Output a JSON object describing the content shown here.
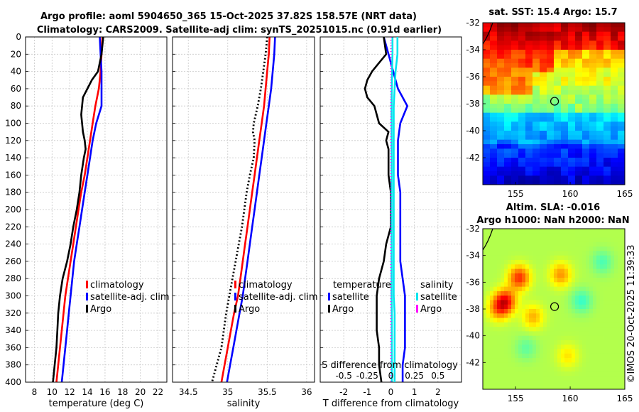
{
  "titles": {
    "line1": "Argo profile: aoml 5904650_365 15-Oct-2025 37.82S 158.57E (NRT data)",
    "line2": "Climatology: CARS2009. Satellite-adj clim: synTS_20251015.nc (0.91d earlier)"
  },
  "timestamp": "©IMOS 20-Oct-2025 11:39:33",
  "colors": {
    "clim": "#ff0000",
    "sat": "#0000ff",
    "argo": "#000000",
    "sat_s": "#00e5ee",
    "argo_s": "#ff00ff"
  },
  "chart_data": [
    {
      "type": "line",
      "name": "temperature",
      "xlabel": "temperature (deg C)",
      "xlim": [
        7,
        23
      ],
      "ylim": [
        400,
        0
      ],
      "xticks": [
        "8",
        "10",
        "12",
        "14",
        "16",
        "18",
        "20",
        "22"
      ],
      "xtick_values": [
        8,
        10,
        12,
        14,
        16,
        18,
        20,
        22
      ],
      "yticks": [
        "0",
        "20",
        "40",
        "60",
        "80",
        "100",
        "120",
        "140",
        "160",
        "180",
        "200",
        "220",
        "240",
        "260",
        "280",
        "300",
        "320",
        "340",
        "360",
        "380",
        "400"
      ],
      "grid": true,
      "legend": {
        "position": "lower-right",
        "labels": [
          "climatology",
          "satellite-adj. clim",
          "Argo"
        ]
      },
      "series": [
        {
          "name": "climatology",
          "depth": [
            0,
            20,
            40,
            60,
            80,
            100,
            120,
            140,
            160,
            180,
            200,
            220,
            240,
            260,
            280,
            300,
            320,
            340,
            360,
            380,
            400
          ],
          "values": [
            15.7,
            15.6,
            15.5,
            15.3,
            14.9,
            14.6,
            14.3,
            14.0,
            13.7,
            13.3,
            13.0,
            12.7,
            12.4,
            12.1,
            11.8,
            11.5,
            11.3,
            11.1,
            10.9,
            10.7,
            10.5
          ]
        },
        {
          "name": "satellite-adj. clim",
          "depth": [
            0,
            20,
            40,
            60,
            80,
            100,
            120,
            140,
            160,
            180,
            200,
            220,
            240,
            260,
            280,
            300,
            320,
            340,
            360,
            380,
            400
          ],
          "values": [
            15.4,
            15.5,
            15.6,
            15.6,
            15.6,
            15.0,
            14.6,
            14.3,
            14.0,
            13.7,
            13.4,
            13.1,
            12.8,
            12.5,
            12.3,
            12.1,
            11.9,
            11.7,
            11.5,
            11.3,
            11.1
          ]
        },
        {
          "name": "Argo",
          "depth": [
            0,
            10,
            20,
            30,
            40,
            50,
            60,
            70,
            80,
            90,
            100,
            110,
            120,
            130,
            140,
            160,
            180,
            200,
            220,
            240,
            260,
            280,
            300,
            320,
            340,
            360,
            380,
            400
          ],
          "values": [
            15.8,
            15.7,
            15.6,
            15.4,
            15.2,
            14.5,
            14.0,
            13.5,
            13.4,
            13.3,
            13.4,
            13.5,
            13.7,
            13.8,
            13.6,
            13.3,
            13.1,
            12.8,
            12.4,
            12.1,
            11.7,
            11.2,
            10.9,
            10.7,
            10.6,
            10.5,
            10.3,
            10.1
          ]
        }
      ]
    },
    {
      "type": "line",
      "name": "salinity",
      "xlabel": "salinity",
      "xlim": [
        34.3,
        36.1
      ],
      "ylim": [
        400,
        0
      ],
      "xticks": [
        "34.5",
        "35",
        "35.5",
        "36"
      ],
      "xtick_values": [
        34.5,
        35.0,
        35.5,
        36.0
      ],
      "grid": true,
      "legend": {
        "position": "lower-right",
        "labels": [
          "climatology",
          "satellite-adj. clim",
          "Argo"
        ]
      },
      "series": [
        {
          "name": "climatology",
          "depth": [
            0,
            20,
            40,
            60,
            80,
            100,
            120,
            140,
            160,
            180,
            200,
            220,
            240,
            260,
            280,
            300,
            320,
            340,
            360,
            380,
            400
          ],
          "values": [
            35.53,
            35.52,
            35.5,
            35.48,
            35.46,
            35.43,
            35.4,
            35.37,
            35.34,
            35.31,
            35.28,
            35.25,
            35.22,
            35.19,
            35.16,
            35.13,
            35.08,
            35.04,
            35.0,
            34.96,
            34.92
          ]
        },
        {
          "name": "satellite-adj. clim",
          "depth": [
            0,
            20,
            40,
            60,
            80,
            100,
            120,
            140,
            160,
            180,
            200,
            220,
            240,
            260,
            280,
            300,
            320,
            340,
            360,
            380,
            400
          ],
          "values": [
            35.6,
            35.59,
            35.57,
            35.55,
            35.52,
            35.49,
            35.46,
            35.43,
            35.4,
            35.37,
            35.34,
            35.31,
            35.28,
            35.25,
            35.22,
            35.19,
            35.15,
            35.11,
            35.07,
            35.03,
            34.99
          ]
        },
        {
          "name": "Argo",
          "depth": [
            0,
            20,
            40,
            60,
            80,
            100,
            110,
            120,
            140,
            160,
            180,
            200,
            220,
            240,
            260,
            280,
            300,
            320,
            340,
            360,
            380,
            400
          ],
          "values": [
            35.5,
            35.48,
            35.45,
            35.42,
            35.38,
            35.33,
            35.32,
            35.34,
            35.33,
            35.28,
            35.24,
            35.21,
            35.18,
            35.14,
            35.1,
            35.06,
            35.02,
            34.98,
            34.95,
            34.92,
            34.86,
            34.8
          ]
        }
      ]
    },
    {
      "type": "line",
      "name": "differences",
      "xlabel": "T difference from climatology",
      "xlim": [
        -3,
        3
      ],
      "ylim": [
        400,
        0
      ],
      "xticks": [
        "-2",
        "-1",
        "0",
        "1",
        "2"
      ],
      "xtick_values": [
        -2,
        -1,
        0,
        1,
        2
      ],
      "top_axis_label": "S difference from climatology",
      "top_ticks": [
        "-0.5",
        "-0.25",
        "0",
        "0.25",
        "0.5"
      ],
      "grid": true,
      "legend_t": {
        "title": "temperature",
        "labels": [
          "satellite",
          "Argo"
        ]
      },
      "legend_s": {
        "title": "salinity",
        "labels": [
          "satellite",
          "Argo"
        ]
      },
      "series": [
        {
          "name": "temperature satellite",
          "depth": [
            0,
            20,
            40,
            60,
            80,
            100,
            120,
            140,
            160,
            180,
            200,
            220,
            240,
            260,
            280,
            300,
            320,
            340,
            360,
            380,
            400
          ],
          "values": [
            -0.3,
            -0.1,
            0.1,
            0.3,
            0.7,
            0.4,
            0.3,
            0.3,
            0.3,
            0.4,
            0.4,
            0.4,
            0.4,
            0.4,
            0.5,
            0.6,
            0.6,
            0.6,
            0.6,
            0.5,
            0.5
          ]
        },
        {
          "name": "temperature Argo",
          "depth": [
            0,
            20,
            30,
            40,
            50,
            60,
            70,
            80,
            90,
            100,
            110,
            120,
            130,
            140,
            160,
            180,
            200,
            220,
            240,
            260,
            280,
            300,
            320,
            340,
            360,
            380,
            400
          ],
          "values": [
            -0.3,
            -0.2,
            -0.5,
            -0.8,
            -1.0,
            -1.1,
            -1.0,
            -0.7,
            -0.6,
            -0.5,
            -0.1,
            -0.2,
            -0.1,
            -0.1,
            -0.1,
            0.0,
            0.0,
            0.0,
            -0.2,
            -0.3,
            -0.5,
            -0.6,
            -0.6,
            -0.6,
            -0.5,
            -0.5,
            -0.4
          ]
        },
        {
          "name": "salinity satellite",
          "depth": [
            0,
            20,
            40,
            60,
            80,
            100,
            120,
            140,
            160,
            180,
            200,
            220,
            240,
            260,
            280,
            300,
            320,
            340,
            360,
            380,
            400
          ],
          "values": [
            0.07,
            0.07,
            0.05,
            0.04,
            0.03,
            0.03,
            0.03,
            0.03,
            0.03,
            0.03,
            0.03,
            0.03,
            0.03,
            0.03,
            0.03,
            0.03,
            0.04,
            0.04,
            0.04,
            0.04,
            0.04
          ]
        },
        {
          "name": "salinity Argo",
          "depth": [
            0,
            400
          ],
          "values": [
            0.0,
            0.0
          ]
        }
      ]
    },
    {
      "type": "heatmap",
      "name": "sst-map",
      "title": "sat. SST: 15.4 Argo: 15.7",
      "xlim": [
        152,
        165
      ],
      "ylim": [
        -44,
        -32
      ],
      "xticks": [
        "155",
        "160",
        "165"
      ],
      "xtick_values": [
        155,
        160,
        165
      ],
      "yticks": [
        "-32",
        "-34",
        "-36",
        "-38",
        "-40",
        "-42"
      ],
      "ytick_values": [
        -32,
        -34,
        -36,
        -38,
        -40,
        -42
      ],
      "marker": {
        "lon": 158.57,
        "lat": -37.82
      }
    },
    {
      "type": "heatmap",
      "name": "sla-map",
      "title_line1": "Altim. SLA: -0.016",
      "title_line2": "Argo h1000: NaN h2000: NaN",
      "xlim": [
        152,
        165
      ],
      "ylim": [
        -44,
        -32
      ],
      "xticks": [
        "155",
        "160",
        "165"
      ],
      "xtick_values": [
        155,
        160,
        165
      ],
      "yticks": [
        "-32",
        "-34",
        "-36",
        "-38",
        "-40",
        "-42"
      ],
      "ytick_values": [
        -32,
        -34,
        -36,
        -38,
        -40,
        -42
      ],
      "marker": {
        "lon": 158.57,
        "lat": -37.82
      }
    }
  ]
}
